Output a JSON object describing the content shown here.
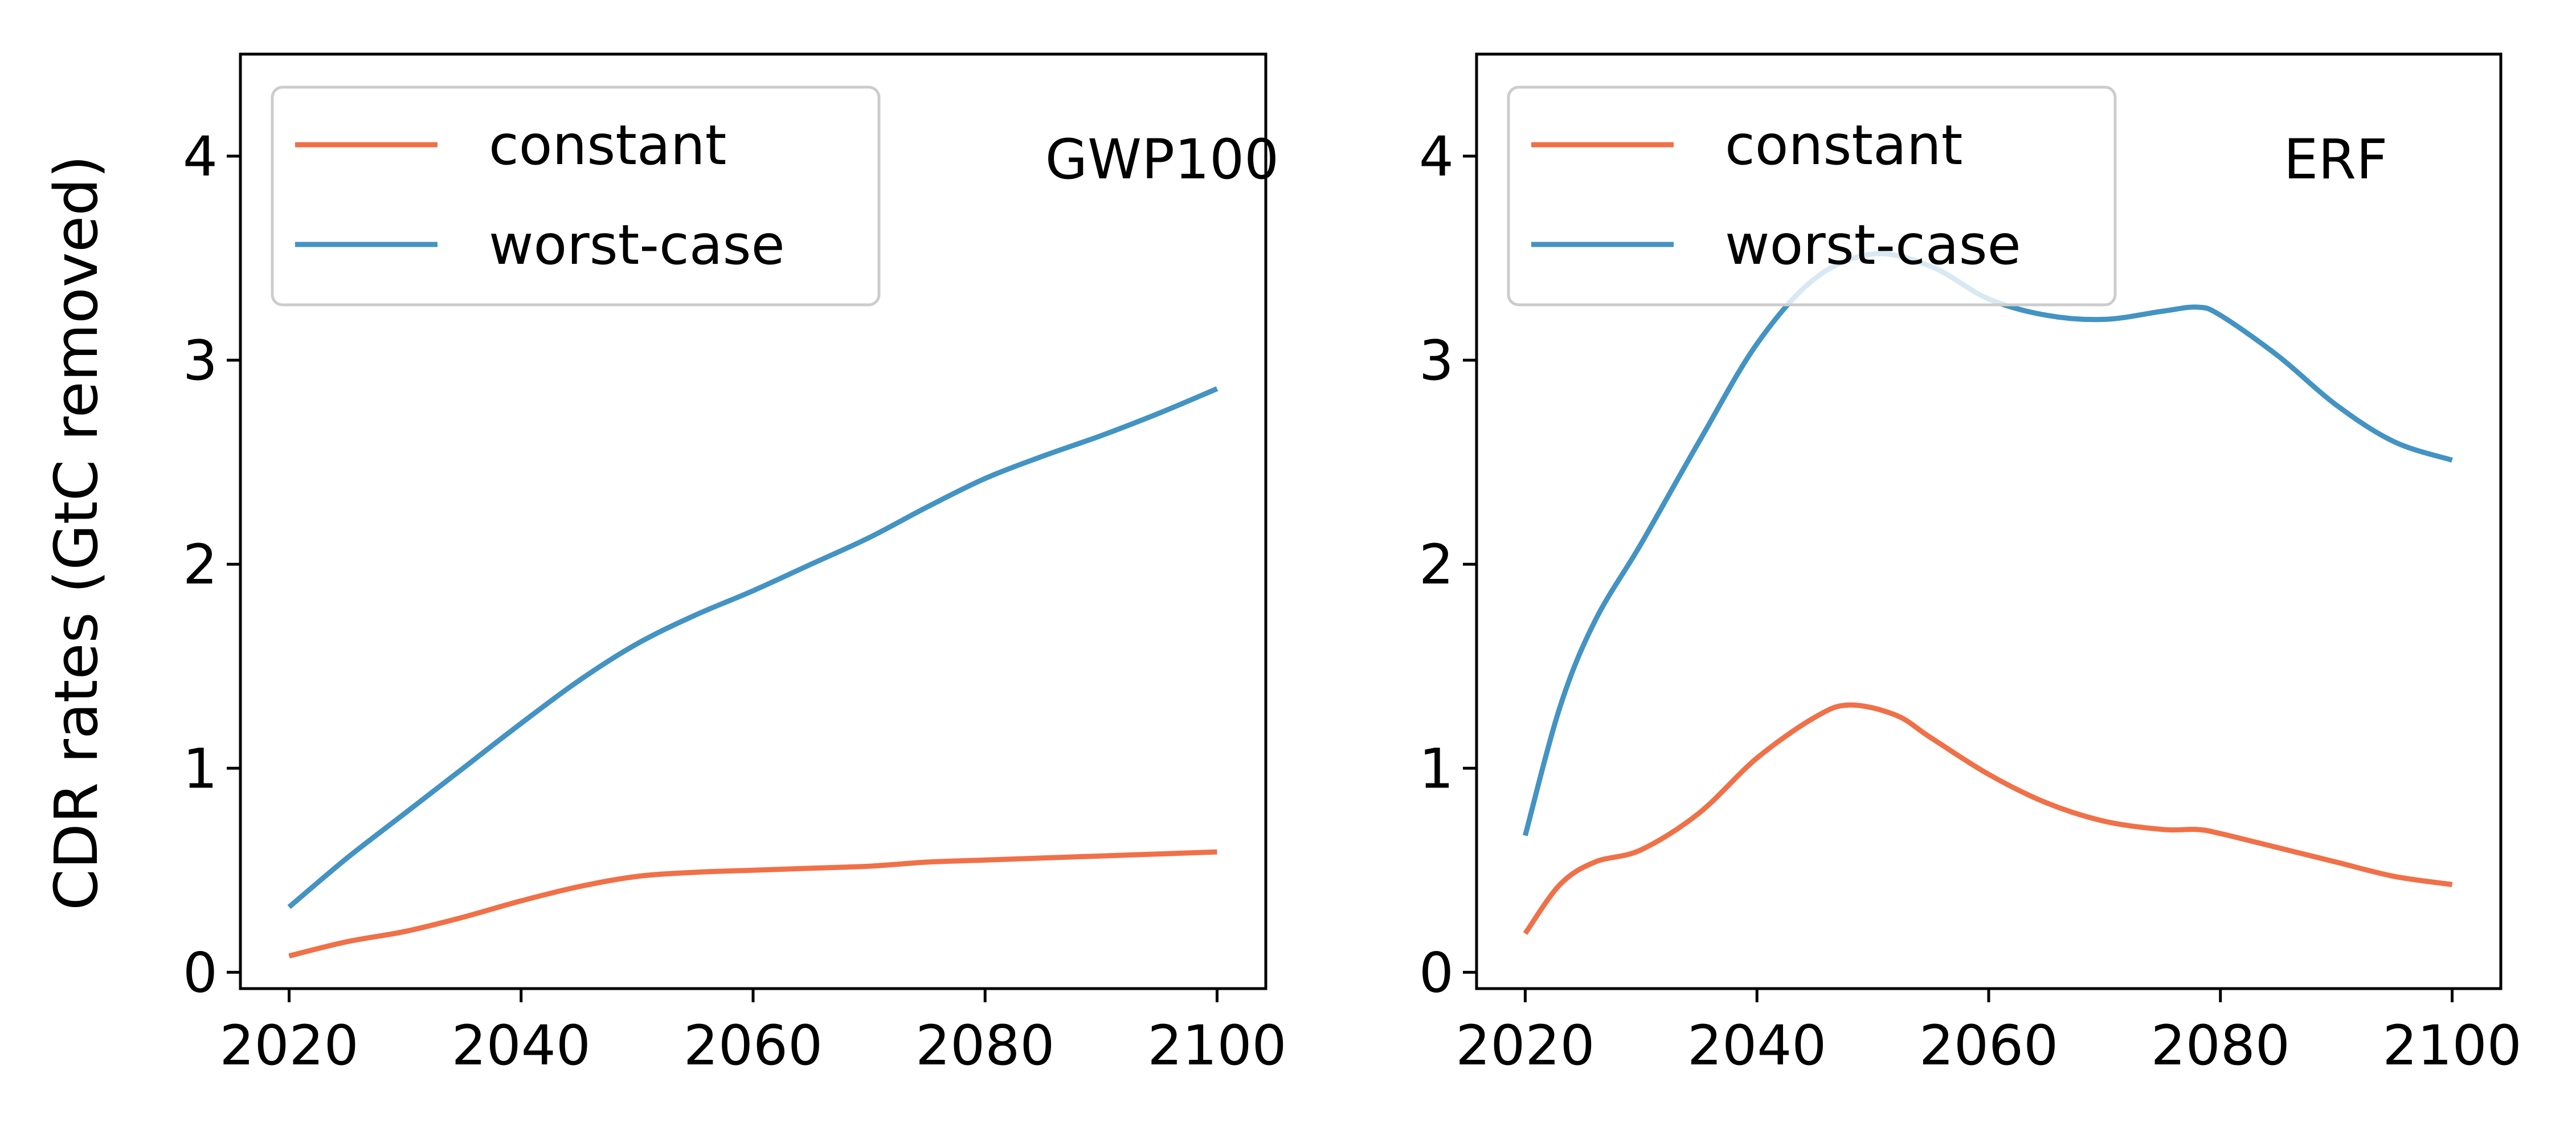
{
  "chart_data": [
    {
      "type": "line",
      "title": "",
      "annotation": "GWP100",
      "xlabel": "",
      "ylabel": "CDR rates (GtC removed)",
      "xlim": [
        2015.8,
        2104.2
      ],
      "ylim": [
        -0.08,
        4.5
      ],
      "xticks": [
        "2020",
        "2040",
        "2060",
        "2080",
        "2100"
      ],
      "yticks": [
        "0",
        "1",
        "2",
        "3",
        "4"
      ],
      "legend_position": "top-left",
      "grid": false,
      "series": [
        {
          "name": "constant",
          "color": "#f07048",
          "x": [
            2020,
            2025,
            2030,
            2035,
            2040,
            2045,
            2050,
            2055,
            2060,
            2065,
            2070,
            2075,
            2080,
            2085,
            2090,
            2095,
            2100
          ],
          "y": [
            0.08,
            0.15,
            0.2,
            0.27,
            0.35,
            0.42,
            0.47,
            0.49,
            0.5,
            0.51,
            0.52,
            0.54,
            0.55,
            0.56,
            0.57,
            0.58,
            0.59
          ]
        },
        {
          "name": "worst-case",
          "color": "#4393c3",
          "x": [
            2020,
            2025,
            2030,
            2035,
            2040,
            2045,
            2050,
            2055,
            2060,
            2065,
            2070,
            2075,
            2080,
            2085,
            2090,
            2095,
            2100
          ],
          "y": [
            0.32,
            0.56,
            0.78,
            1.0,
            1.22,
            1.43,
            1.61,
            1.75,
            1.87,
            2.0,
            2.13,
            2.28,
            2.42,
            2.53,
            2.63,
            2.74,
            2.86
          ]
        }
      ]
    },
    {
      "type": "line",
      "title": "",
      "annotation": "ERF",
      "xlabel": "",
      "ylabel": "",
      "xlim": [
        2015.8,
        2104.2
      ],
      "ylim": [
        -0.08,
        4.5
      ],
      "xticks": [
        "2020",
        "2040",
        "2060",
        "2080",
        "2100"
      ],
      "yticks": [
        "0",
        "1",
        "2",
        "3",
        "4"
      ],
      "legend_position": "top-left",
      "grid": false,
      "series": [
        {
          "name": "constant",
          "color": "#f07048",
          "x": [
            2020,
            2023,
            2026,
            2030,
            2035,
            2040,
            2045,
            2048,
            2052,
            2055,
            2060,
            2065,
            2070,
            2075,
            2078,
            2080,
            2085,
            2090,
            2095,
            2100
          ],
          "y": [
            0.19,
            0.43,
            0.54,
            0.6,
            0.78,
            1.05,
            1.25,
            1.31,
            1.26,
            1.15,
            0.97,
            0.83,
            0.74,
            0.7,
            0.7,
            0.68,
            0.61,
            0.54,
            0.47,
            0.43
          ]
        },
        {
          "name": "worst-case",
          "color": "#4393c3",
          "x": [
            2020,
            2023,
            2026,
            2030,
            2035,
            2040,
            2045,
            2050,
            2055,
            2060,
            2065,
            2070,
            2075,
            2078,
            2080,
            2085,
            2090,
            2095,
            2100
          ],
          "y": [
            0.67,
            1.3,
            1.72,
            2.1,
            2.6,
            3.08,
            3.4,
            3.52,
            3.46,
            3.3,
            3.22,
            3.2,
            3.24,
            3.26,
            3.22,
            3.02,
            2.78,
            2.6,
            2.51
          ]
        }
      ]
    }
  ]
}
